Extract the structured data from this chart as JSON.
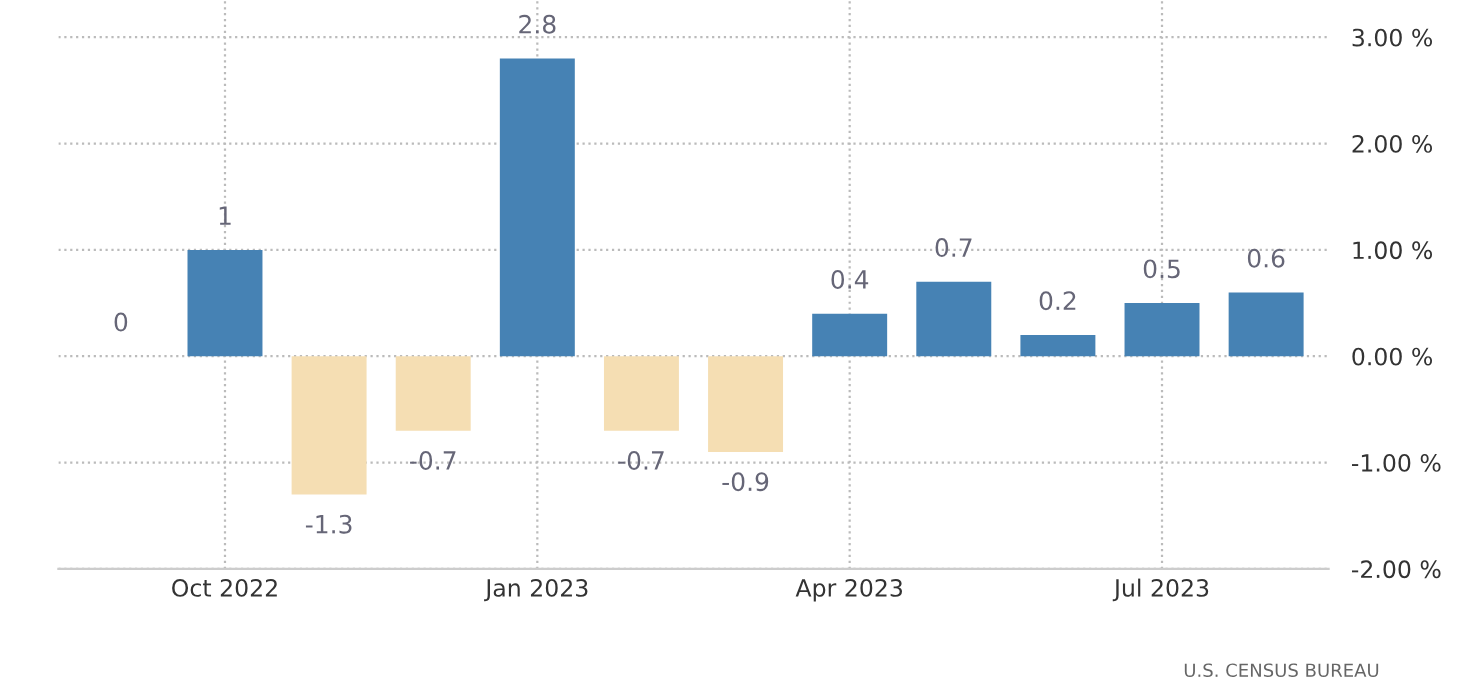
{
  "chart_data": {
    "type": "bar",
    "categories": [
      null,
      "Oct 2022",
      null,
      null,
      "Jan 2023",
      null,
      null,
      "Apr 2023",
      null,
      null,
      "Jul 2023",
      null
    ],
    "values": [
      0,
      1,
      -1.3,
      -0.7,
      2.8,
      -0.7,
      -0.9,
      0.4,
      0.7,
      0.2,
      0.5,
      0.6
    ],
    "colors": [
      "#4682b4",
      "#4682b4",
      "#f5deb3",
      "#f5deb3",
      "#4682b4",
      "#f5deb3",
      "#f5deb3",
      "#4682b4",
      "#4682b4",
      "#4682b4",
      "#4682b4",
      "#4682b4"
    ],
    "data_labels": true,
    "ylim": [
      -2.0,
      3.35
    ],
    "yticks": [
      {
        "value": 3,
        "label": "3.00 %"
      },
      {
        "value": 2,
        "label": "2.00 %"
      },
      {
        "value": 1,
        "label": "1.00 %"
      },
      {
        "value": 0,
        "label": "0.00 %"
      },
      {
        "value": -1,
        "label": "-1.00 %"
      },
      {
        "value": -2,
        "label": "-2.00 %"
      }
    ],
    "grid": true,
    "annotations": [
      "U.S. CENSUS BUREAU"
    ]
  }
}
